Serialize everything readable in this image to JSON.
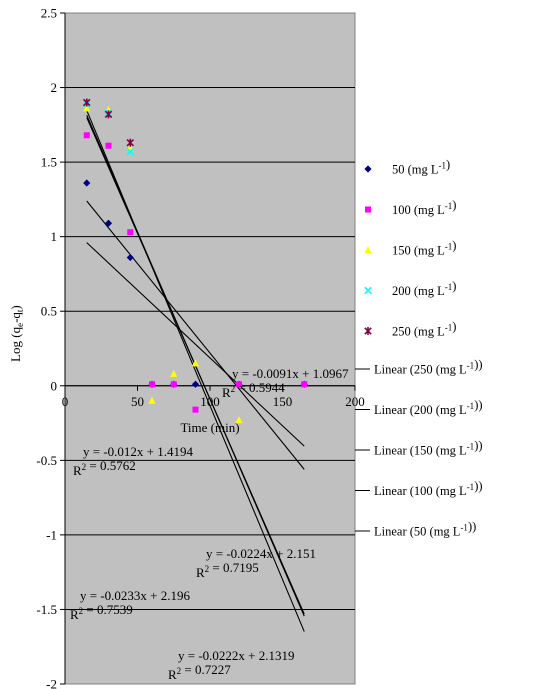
{
  "chart_data": {
    "type": "scatter",
    "title": "",
    "xlabel": "Time (min)",
    "ylabel": "Log (qe-qt)",
    "xlim": [
      0,
      200
    ],
    "ylim": [
      -2,
      2.5
    ],
    "x_ticks": [
      "0",
      "50",
      "100",
      "150",
      "200"
    ],
    "y_ticks": [
      "2.5",
      "2",
      "1.5",
      "1",
      "0.5",
      "0",
      "-0.5",
      "-1",
      "-1.5",
      "-2"
    ],
    "grid": "horizontal",
    "plot_background": "#c0c0c0",
    "legend_position": "right",
    "series": [
      {
        "name": "50 (mg L⁻¹)",
        "marker": "diamond",
        "color": "#000080",
        "points": [
          [
            15,
            1.36
          ],
          [
            30,
            1.09
          ],
          [
            45,
            0.86
          ],
          [
            60,
            0.01
          ],
          [
            75,
            0.01
          ],
          [
            90,
            0.01
          ],
          [
            120,
            0.01
          ],
          [
            165,
            0.01
          ]
        ]
      },
      {
        "name": "100 (mg L⁻¹)",
        "marker": "square",
        "color": "#ff00ff",
        "points": [
          [
            15,
            1.68
          ],
          [
            30,
            1.61
          ],
          [
            45,
            1.03
          ],
          [
            60,
            0.01
          ],
          [
            75,
            0.01
          ],
          [
            90,
            -0.16
          ],
          [
            120,
            0.01
          ],
          [
            165,
            0.01
          ]
        ]
      },
      {
        "name": "150 (mg L⁻¹)",
        "marker": "triangle",
        "color": "#ffff00",
        "points": [
          [
            15,
            1.86
          ],
          [
            30,
            1.85
          ],
          [
            45,
            1.6
          ],
          [
            60,
            -0.1
          ],
          [
            75,
            0.08
          ],
          [
            90,
            0.15
          ],
          [
            120,
            -0.23
          ]
        ]
      },
      {
        "name": "200 (mg L⁻¹)",
        "marker": "x",
        "color": "#00ffff",
        "points": [
          [
            15,
            1.89
          ],
          [
            30,
            1.83
          ],
          [
            45,
            1.57
          ]
        ]
      },
      {
        "name": "250 (mg L⁻¹)",
        "marker": "star",
        "color": "#800040",
        "points": [
          [
            15,
            1.9
          ],
          [
            30,
            1.82
          ],
          [
            45,
            1.63
          ]
        ]
      }
    ],
    "trendlines": [
      {
        "name": "Linear (250 (mg L⁻¹))",
        "slope": -0.0222,
        "intercept": 2.1319,
        "x_range": [
          15,
          165
        ]
      },
      {
        "name": "Linear (200 (mg L⁻¹))",
        "slope": -0.0224,
        "intercept": 2.151,
        "x_range": [
          15,
          165
        ]
      },
      {
        "name": "Linear (150 (mg L⁻¹))",
        "slope": -0.0091,
        "intercept": 1.0967,
        "x_range": [
          15,
          165
        ]
      },
      {
        "name": "Linear (100 (mg L⁻¹))",
        "slope": -0.0233,
        "intercept": 2.196,
        "x_range": [
          15,
          165
        ]
      },
      {
        "name": "Linear (50 (mg L⁻¹))",
        "slope": -0.012,
        "intercept": 1.4194,
        "x_range": [
          15,
          165
        ]
      }
    ],
    "annotations": [
      {
        "eq": "y = -0.0091x + 1.0967",
        "r2": "R2 = 0.5944"
      },
      {
        "eq": "y = -0.012x + 1.4194",
        "r2": "R2 = 0.5762"
      },
      {
        "eq": "y = -0.0224x + 2.151",
        "r2": "R2 = 0.7195"
      },
      {
        "eq": "y = -0.0233x + 2.196",
        "r2": "R2 = 0.7539"
      },
      {
        "eq": "y = -0.0222x + 2.1319",
        "r2": "R2 = 0.7227"
      }
    ]
  }
}
